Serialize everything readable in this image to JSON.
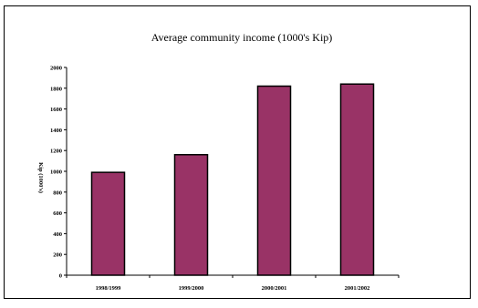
{
  "chart_data": {
    "type": "bar",
    "title": "Average community income (1000's Kip)",
    "ylabel": "Kip (1000's)",
    "xlabel": "",
    "categories": [
      "1998/1999",
      "1999/2000",
      "2000/2001",
      "2001/2002"
    ],
    "values": [
      990,
      1160,
      1820,
      1840
    ],
    "ylim": [
      0,
      2000
    ],
    "yticks": [
      "0",
      "200",
      "400",
      "600",
      "800",
      "1000",
      "1200",
      "1400",
      "1600",
      "1800",
      "2000"
    ],
    "bar_color": "#993366",
    "grid": false,
    "legend": "none"
  }
}
